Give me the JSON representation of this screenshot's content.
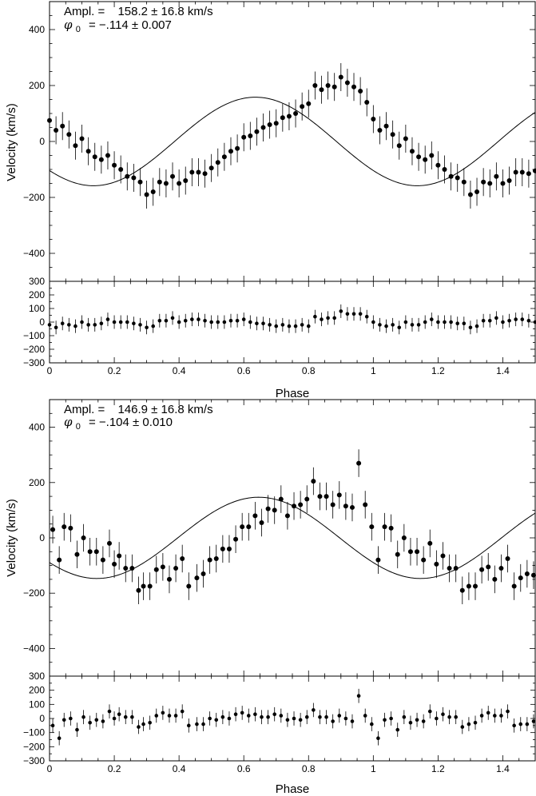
{
  "chart_data": [
    {
      "type": "scatter",
      "xlabel": "Phase",
      "ylabel": "Velocity (km/s)",
      "xlim": [
        0,
        1.5
      ],
      "ylim": [
        -500,
        500
      ],
      "residual_ylim": [
        -300,
        300
      ],
      "x_ticks": [
        0,
        0.2,
        0.4,
        0.6,
        0.8,
        1,
        1.2,
        1.4
      ],
      "x_tick_labels": [
        "0",
        "0.2",
        "0.4",
        "0.6",
        "0.8",
        "1",
        "1.2",
        "1.4"
      ],
      "y_ticks": [
        -400,
        -200,
        0,
        200,
        400
      ],
      "y_tick_labels": [
        "−400",
        "−200",
        "0",
        "200",
        "400"
      ],
      "residual_ticks": [
        -300,
        -200,
        -100,
        0,
        100,
        200,
        300
      ],
      "residual_tick_labels": [
        "−300",
        "−200",
        "−100",
        "0",
        "100",
        "200",
        "300"
      ],
      "annotation": {
        "ampl_label": "Ampl.  =",
        "ampl_value": "158.2 ± 16.8 km/s",
        "phi_symbol": "φ",
        "phi_sub": "0",
        "phi_value": "=  −.114 ± 0.007"
      },
      "model": {
        "amplitude": 158.2,
        "phi0": -0.114
      },
      "points": {
        "x": [
          0.0,
          0.02,
          0.04,
          0.06,
          0.08,
          0.1,
          0.12,
          0.14,
          0.16,
          0.18,
          0.2,
          0.22,
          0.24,
          0.26,
          0.28,
          0.3,
          0.32,
          0.34,
          0.36,
          0.38,
          0.4,
          0.42,
          0.44,
          0.46,
          0.48,
          0.5,
          0.52,
          0.54,
          0.56,
          0.58,
          0.6,
          0.62,
          0.64,
          0.66,
          0.68,
          0.7,
          0.72,
          0.74,
          0.76,
          0.78,
          0.8,
          0.82,
          0.84,
          0.86,
          0.88,
          0.9,
          0.92,
          0.94,
          0.96,
          0.98,
          1.0,
          1.02,
          1.04,
          1.06,
          1.08,
          1.1,
          1.12,
          1.14,
          1.16,
          1.18,
          1.2,
          1.22,
          1.24,
          1.26,
          1.28,
          1.3,
          1.32,
          1.34,
          1.36,
          1.38,
          1.4,
          1.42,
          1.44,
          1.46,
          1.48,
          1.5
        ],
        "y": [
          75,
          40,
          55,
          25,
          -15,
          10,
          -35,
          -55,
          -65,
          -50,
          -85,
          -100,
          -125,
          -130,
          -145,
          -190,
          -180,
          -145,
          -150,
          -125,
          -150,
          -140,
          -110,
          -110,
          -115,
          -95,
          -75,
          -55,
          -35,
          -25,
          15,
          20,
          35,
          50,
          60,
          65,
          85,
          90,
          100,
          125,
          135,
          200,
          185,
          200,
          195,
          230,
          210,
          195,
          180,
          140,
          80,
          40,
          55,
          25,
          -15,
          10,
          -35,
          -55,
          -65,
          -50,
          -85,
          -100,
          -125,
          -130,
          -145,
          -190,
          -180,
          -145,
          -150,
          -125,
          -150,
          -140,
          -110,
          -110,
          -115,
          -105
        ],
        "err": 50
      },
      "residuals": {
        "y": [
          -20,
          -40,
          -10,
          -20,
          -30,
          0,
          -20,
          -20,
          -10,
          20,
          0,
          0,
          0,
          -10,
          -20,
          -40,
          -30,
          10,
          10,
          30,
          0,
          10,
          20,
          20,
          10,
          0,
          0,
          0,
          10,
          10,
          20,
          0,
          -10,
          -10,
          -20,
          -30,
          -20,
          -30,
          -30,
          -20,
          -30,
          40,
          20,
          30,
          30,
          80,
          60,
          60,
          60,
          40,
          0,
          -20,
          -30,
          -20,
          -40,
          0,
          -20,
          -20,
          0,
          20,
          0,
          0,
          0,
          -10,
          -10,
          -40,
          -30,
          10,
          10,
          30,
          0,
          10,
          20,
          20,
          10,
          0
        ],
        "err": 50
      }
    },
    {
      "type": "scatter",
      "xlabel": "Phase",
      "ylabel": "Velocity (km/s)",
      "xlim": [
        0,
        1.5
      ],
      "ylim": [
        -500,
        500
      ],
      "residual_ylim": [
        -300,
        300
      ],
      "x_ticks": [
        0,
        0.2,
        0.4,
        0.6,
        0.8,
        1,
        1.2,
        1.4
      ],
      "x_tick_labels": [
        "0",
        "0.2",
        "0.4",
        "0.6",
        "0.8",
        "1",
        "1.2",
        "1.4"
      ],
      "y_ticks": [
        -400,
        -200,
        0,
        200,
        400
      ],
      "y_tick_labels": [
        "−400",
        "−200",
        "0",
        "200",
        "400"
      ],
      "residual_ticks": [
        -300,
        -200,
        -100,
        0,
        100,
        200,
        300
      ],
      "residual_tick_labels": [
        "−300",
        "−200",
        "−100",
        "0",
        "100",
        "200",
        "300"
      ],
      "annotation": {
        "ampl_label": "Ampl.  =",
        "ampl_value": "146.9 ± 16.8 km/s",
        "phi_symbol": "φ",
        "phi_sub": "0",
        "phi_value": "=  −.104 ± 0.010"
      },
      "model": {
        "amplitude": 146.9,
        "phi0": -0.104
      },
      "points": {
        "x": [
          0.01,
          0.03,
          0.045,
          0.065,
          0.085,
          0.105,
          0.125,
          0.145,
          0.165,
          0.185,
          0.2,
          0.215,
          0.235,
          0.255,
          0.275,
          0.29,
          0.31,
          0.33,
          0.35,
          0.37,
          0.39,
          0.41,
          0.43,
          0.455,
          0.475,
          0.495,
          0.515,
          0.535,
          0.555,
          0.575,
          0.595,
          0.615,
          0.635,
          0.655,
          0.675,
          0.695,
          0.715,
          0.735,
          0.755,
          0.775,
          0.795,
          0.815,
          0.835,
          0.855,
          0.875,
          0.895,
          0.915,
          0.935,
          0.955,
          0.975,
          0.995,
          1.015,
          1.035,
          1.055,
          1.075,
          1.095,
          1.115,
          1.135,
          1.155,
          1.175,
          1.195,
          1.215,
          1.235,
          1.255,
          1.275,
          1.295,
          1.315,
          1.335,
          1.355,
          1.375,
          1.395,
          1.415,
          1.435,
          1.455,
          1.475,
          1.495
        ],
        "y": [
          30,
          -80,
          40,
          35,
          -60,
          0,
          -50,
          -50,
          -80,
          -20,
          -95,
          -65,
          -110,
          -110,
          -190,
          -175,
          -175,
          -115,
          -105,
          -150,
          -110,
          -75,
          -175,
          -145,
          -130,
          -80,
          -75,
          -40,
          -40,
          -5,
          40,
          40,
          80,
          55,
          105,
          100,
          140,
          80,
          115,
          120,
          140,
          205,
          150,
          150,
          120,
          155,
          115,
          110,
          270,
          120,
          40,
          -80,
          40,
          35,
          -60,
          0,
          -50,
          -50,
          -80,
          -20,
          -95,
          -65,
          -110,
          -110,
          -190,
          -175,
          -175,
          -115,
          -105,
          -150,
          -110,
          -75,
          -175,
          -145,
          -130,
          -135
        ],
        "err": 50
      },
      "residuals": {
        "y": [
          -50,
          -140,
          -10,
          0,
          -80,
          10,
          -30,
          -10,
          -20,
          50,
          0,
          30,
          10,
          10,
          -60,
          -40,
          -30,
          20,
          40,
          20,
          20,
          50,
          -50,
          -40,
          -40,
          0,
          -10,
          10,
          0,
          30,
          40,
          20,
          30,
          10,
          10,
          30,
          20,
          -10,
          0,
          -10,
          10,
          60,
          10,
          10,
          -20,
          20,
          0,
          -20,
          160,
          20,
          -40,
          -140,
          -10,
          0,
          -80,
          10,
          -30,
          -10,
          -20,
          50,
          0,
          30,
          10,
          10,
          -60,
          -40,
          -30,
          20,
          40,
          20,
          20,
          50,
          -50,
          -40,
          -40,
          -20
        ],
        "err": 50
      }
    }
  ]
}
